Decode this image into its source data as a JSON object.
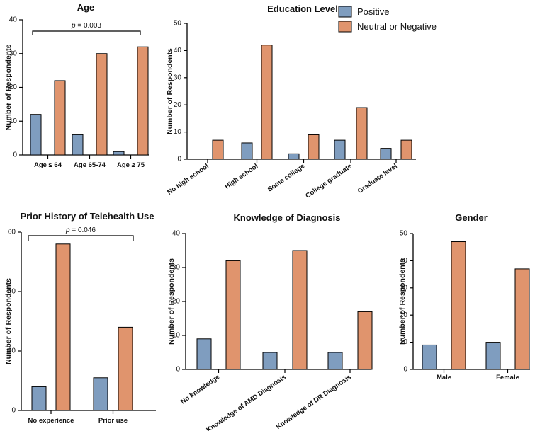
{
  "legend": [
    {
      "name": "Positive",
      "color": "#7f9dbf"
    },
    {
      "name": "Neutral or Negative",
      "color": "#e0946d"
    }
  ],
  "chart_data": [
    {
      "type": "bar",
      "title": "Age",
      "ylabel": "Number of Respondents",
      "xlabel": "",
      "categories": [
        "Age ≤ 64",
        "Age 65-74",
        "Age ≥ 75"
      ],
      "series": [
        {
          "name": "Positive",
          "values": [
            12,
            6,
            1
          ]
        },
        {
          "name": "Neutral or Negative",
          "values": [
            22,
            30,
            32
          ]
        }
      ],
      "ylim": [
        0,
        40
      ],
      "yticks": [
        0,
        10,
        20,
        30,
        40
      ],
      "rotate_labels": false,
      "annotation": {
        "p_label": "p",
        "p_value": "= 0.003"
      }
    },
    {
      "type": "bar",
      "title": "Education Level",
      "ylabel": "Number of Respondents",
      "xlabel": "",
      "categories": [
        "No high school",
        "High school",
        "Some college",
        "College graduate",
        "Graduate level"
      ],
      "series": [
        {
          "name": "Positive",
          "values": [
            0,
            6,
            2,
            7,
            4
          ]
        },
        {
          "name": "Neutral or Negative",
          "values": [
            7,
            42,
            9,
            19,
            7
          ]
        }
      ],
      "ylim": [
        0,
        50
      ],
      "yticks": [
        0,
        10,
        20,
        30,
        40,
        50
      ],
      "rotate_labels": true
    },
    {
      "type": "bar",
      "title": "Prior History of Telehealth Use",
      "ylabel": "Number of Respondents",
      "xlabel": "",
      "categories": [
        "No experience",
        "Prior use"
      ],
      "series": [
        {
          "name": "Positive",
          "values": [
            8,
            11
          ]
        },
        {
          "name": "Neutral or Negative",
          "values": [
            56,
            28
          ]
        }
      ],
      "ylim": [
        0,
        60
      ],
      "yticks": [
        0,
        20,
        40,
        60
      ],
      "rotate_labels": false,
      "annotation": {
        "p_label": "p",
        "p_value": "= 0.046"
      }
    },
    {
      "type": "bar",
      "title": "Knowledge of  Diagnosis",
      "ylabel": "Number of Respondents",
      "xlabel": "",
      "categories": [
        "No knowledge",
        "Knowledge of AMD Diagnosis",
        "Knowledge of DR Diagnosis"
      ],
      "series": [
        {
          "name": "Positive",
          "values": [
            9,
            5,
            5
          ]
        },
        {
          "name": "Neutral or Negative",
          "values": [
            32,
            35,
            17
          ]
        }
      ],
      "ylim": [
        0,
        40
      ],
      "yticks": [
        0,
        10,
        20,
        30,
        40
      ],
      "rotate_labels": true
    },
    {
      "type": "bar",
      "title": "Gender",
      "ylabel": "Number of Respondents",
      "xlabel": "",
      "categories": [
        "Male",
        "Female"
      ],
      "series": [
        {
          "name": "Positive",
          "values": [
            9,
            10
          ]
        },
        {
          "name": "Neutral or Negative",
          "values": [
            47,
            37
          ]
        }
      ],
      "ylim": [
        0,
        50
      ],
      "yticks": [
        0,
        10,
        20,
        30,
        40,
        50
      ],
      "rotate_labels": false
    }
  ]
}
